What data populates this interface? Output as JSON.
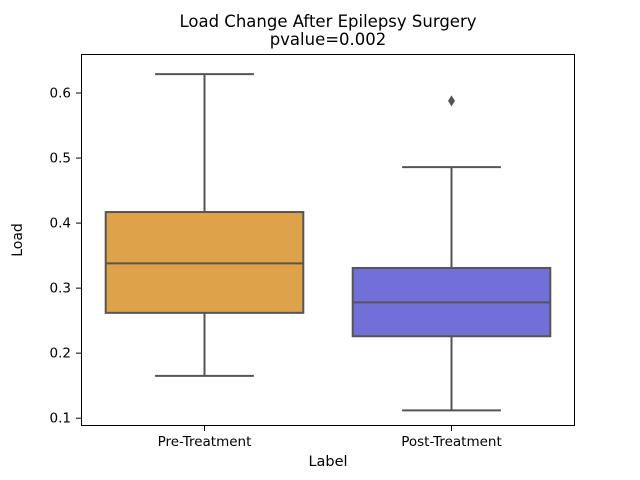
{
  "figure": {
    "background": "#ffffff"
  },
  "chart_data": {
    "type": "boxplot",
    "title": "Load Change After Epilepsy Surgery",
    "subtitle": "pvalue=0.002",
    "xlabel": "Label",
    "ylabel": "Load",
    "categories": [
      "Pre-Treatment",
      "Post-Treatment"
    ],
    "ylim": [
      0.088,
      0.66
    ],
    "yticks": [
      0.1,
      0.2,
      0.3,
      0.4,
      0.5,
      0.6
    ],
    "grid": false,
    "legend": "none",
    "series": [
      {
        "name": "Pre-Treatment",
        "box_color": "#dda24a",
        "whisker_low": 0.165,
        "q1": 0.262,
        "median": 0.338,
        "q3": 0.417,
        "whisker_high": 0.629,
        "outliers": []
      },
      {
        "name": "Post-Treatment",
        "box_color": "#736fd8",
        "whisker_low": 0.112,
        "q1": 0.226,
        "median": 0.278,
        "q3": 0.331,
        "whisker_high": 0.486,
        "outliers": [
          0.588
        ]
      }
    ],
    "line_color": "#555555",
    "axes_color": "#000000"
  }
}
